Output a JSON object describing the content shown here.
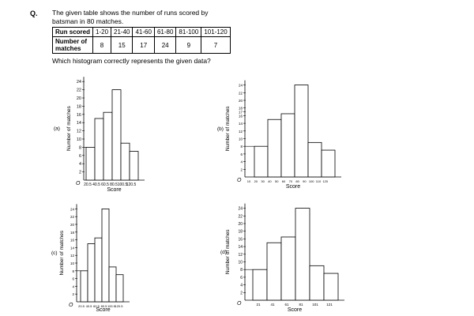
{
  "question": {
    "label": "Q.",
    "line1": "The given table shows the number of runs scored by",
    "line2": "batsman in 80 matches.",
    "ask": "Which histogram correctly represents the given data?"
  },
  "table": {
    "row1_header": "Run scored",
    "row2_header": "Number of matches",
    "ranges": [
      "1-20",
      "21-40",
      "41-60",
      "61-80",
      "81-100",
      "101-120"
    ],
    "matches": [
      "8",
      "15",
      "17",
      "24",
      "9",
      "7"
    ]
  },
  "chart_data": [
    {
      "type": "bar",
      "option": "(a)",
      "xlabel": "Score",
      "ylabel": "Number of matches",
      "xticks": [
        "20.5",
        "40.5",
        "60.5",
        "80.5",
        "100.5",
        "120.5"
      ],
      "yticks": [
        "2",
        "4",
        "6",
        "8",
        "10",
        "12",
        "14",
        "16",
        "18",
        "20",
        "22",
        "24"
      ],
      "values": [
        8,
        15,
        16.5,
        22,
        9,
        7
      ],
      "ylim": [
        0,
        24
      ],
      "origin": "O"
    },
    {
      "type": "bar",
      "option": "(b)",
      "xlabel": "Score",
      "ylabel": "Number of matches",
      "xticks": [
        "10",
        "20",
        "30",
        "40",
        "50",
        "60",
        "70",
        "80",
        "90",
        "100",
        "110",
        "120"
      ],
      "yticks": [
        "2",
        "4",
        "6",
        "8",
        "10",
        "12",
        "14",
        "16",
        "17",
        "18",
        "20",
        "22",
        "24"
      ],
      "values": [
        8,
        15,
        16.5,
        24,
        9,
        7
      ],
      "ylim": [
        0,
        24
      ],
      "origin": "O"
    },
    {
      "type": "bar",
      "option": "(c)",
      "xlabel": "Score",
      "ylabel": "Number of matches",
      "xticks": [
        "20.5",
        "40.5",
        "60.5",
        "80.5",
        "100.5",
        "120.5"
      ],
      "yticks": [
        "2",
        "4",
        "6",
        "8",
        "10",
        "12",
        "14",
        "16",
        "18",
        "20",
        "22",
        "24"
      ],
      "values": [
        8,
        15,
        16.5,
        24,
        9,
        7
      ],
      "ylim": [
        0,
        24
      ],
      "origin": "O"
    },
    {
      "type": "bar",
      "option": "(d)",
      "xlabel": "Score",
      "ylabel": "Number of matches",
      "xticks": [
        "21",
        "41",
        "61",
        "81",
        "101",
        "121"
      ],
      "yticks": [
        "2",
        "4",
        "6",
        "8",
        "10",
        "12",
        "14",
        "16",
        "18",
        "20",
        "22",
        "24"
      ],
      "values": [
        8,
        15,
        16.5,
        24,
        9,
        7
      ],
      "ylim": [
        0,
        24
      ],
      "origin": "O"
    }
  ]
}
